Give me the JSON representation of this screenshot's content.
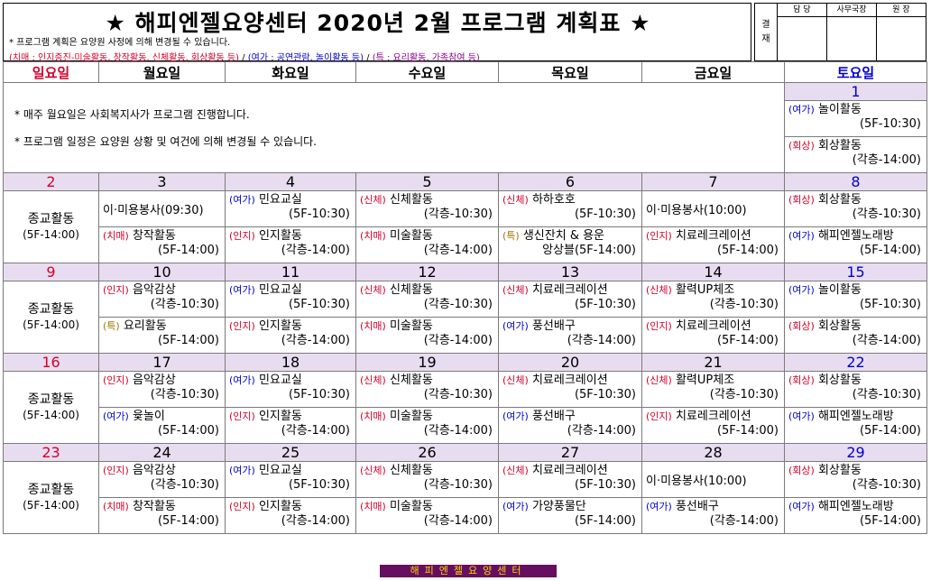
{
  "header": {
    "title": "★ 해피엔젤요양센터 2020년 2월 프로그램 계획표 ★",
    "note": "* 프로그램 계획은 요양원 사정에 의해 변경될 수 있습니다.",
    "legend": {
      "dementia": "(치매 : 인지증진-미술활동, 창작활동, 신체활동, 회상활동 등)",
      "sep1": " / ",
      "leisure": "(여가 : 공연관람, 놀이활동 등)",
      "sep2": " / ",
      "special": "(특 : 요리활동, 가족참여 등)"
    }
  },
  "approval": {
    "label": "결재",
    "columns": [
      "담 당",
      "사무국장",
      "원 장"
    ]
  },
  "weekdays": [
    "일요일",
    "월요일",
    "화요일",
    "수요일",
    "목요일",
    "금요일",
    "토요일"
  ],
  "notices": [
    "* 매주 월요일은 사회복지사가 프로그램 진행합니다.",
    "* 프로그램 일정은 요양원 상황 및 여건에 의해 변경될 수 있습니다."
  ],
  "week0": {
    "sat_date": "1",
    "sat_events": [
      {
        "tag": "(여가)",
        "name": "놀이활동",
        "time": "(5F-10:30)"
      },
      {
        "tag": "(회상)",
        "name": "회상활동",
        "time": "(각층-14:00)"
      }
    ]
  },
  "sunday_program": {
    "name": "종교활동",
    "time": "(5F-14:00)"
  },
  "weeks": [
    {
      "dates": [
        "2",
        "3",
        "4",
        "5",
        "6",
        "7",
        "8"
      ],
      "am": [
        {
          "tag": "",
          "name": "이·미용봉사(09:30)",
          "time": ""
        },
        {
          "tag": "(여가)",
          "name": "민요교실",
          "time": "(5F-10:30)"
        },
        {
          "tag": "(신체)",
          "name": "신체활동",
          "time": "(각층-10:30)"
        },
        {
          "tag": "(신체)",
          "name": "하하호호",
          "time": "(5F-10:30)"
        },
        {
          "tag": "",
          "name": "이·미용봉사(10:00)",
          "time": ""
        },
        {
          "tag": "(회상)",
          "name": "회상활동",
          "time": "(각층-10:30)"
        }
      ],
      "pm": [
        {
          "tag": "(치매)",
          "name": "창작활동",
          "time": "(5F-14:00)"
        },
        {
          "tag": "(인지)",
          "name": "인지활동",
          "time": "(각층-14:00)"
        },
        {
          "tag": "(치매)",
          "name": "미술활동",
          "time": "(각층-14:00)"
        },
        {
          "tag": "(특)",
          "name": "생신잔치 & 용운",
          "time": "앙상블(5F-14:00)"
        },
        {
          "tag": "(인지)",
          "name": "치료레크레이션",
          "time": "(5F-14:00)"
        },
        {
          "tag": "(여가)",
          "name": "해피엔젤노래방",
          "time": "(5F-14:00)"
        }
      ]
    },
    {
      "dates": [
        "9",
        "10",
        "11",
        "12",
        "13",
        "14",
        "15"
      ],
      "am": [
        {
          "tag": "(인지)",
          "name": "음악감상",
          "time": "(각층-10:30)"
        },
        {
          "tag": "(여가)",
          "name": "민요교실",
          "time": "(5F-10:30)"
        },
        {
          "tag": "(신체)",
          "name": "신체활동",
          "time": "(각층-10:30)"
        },
        {
          "tag": "(신체)",
          "name": "치료레크레이션",
          "time": "(5F-10:30)"
        },
        {
          "tag": "(신체)",
          "name": "활력UP체조",
          "time": "(각층-10:30)"
        },
        {
          "tag": "(여가)",
          "name": "놀이활동",
          "time": "(5F-10:30)"
        }
      ],
      "pm": [
        {
          "tag": "(특)",
          "name": "요리활동",
          "time": "(5F-14:00)"
        },
        {
          "tag": "(인지)",
          "name": "인지활동",
          "time": "(각층-14:00)"
        },
        {
          "tag": "(치매)",
          "name": "미술활동",
          "time": "(각층-14:00)"
        },
        {
          "tag": "(여가)",
          "name": "풍선배구",
          "time": "(각층-14:00)"
        },
        {
          "tag": "(인지)",
          "name": "치료레크레이션",
          "time": "(5F-14:00)"
        },
        {
          "tag": "(회상)",
          "name": "회상활동",
          "time": "(각층-14:00)"
        }
      ]
    },
    {
      "dates": [
        "16",
        "17",
        "18",
        "19",
        "20",
        "21",
        "22"
      ],
      "am": [
        {
          "tag": "(인지)",
          "name": "음악감상",
          "time": "(각층-10:30)"
        },
        {
          "tag": "(여가)",
          "name": "민요교실",
          "time": "(5F-10:30)"
        },
        {
          "tag": "(신체)",
          "name": "신체활동",
          "time": "(각층-10:30)"
        },
        {
          "tag": "(신체)",
          "name": "치료레크레이션",
          "time": "(5F-10:30)"
        },
        {
          "tag": "(신체)",
          "name": "활력UP체조",
          "time": "(각층-10:30)"
        },
        {
          "tag": "(회상)",
          "name": "회상활동",
          "time": "(각층-10:30)"
        }
      ],
      "pm": [
        {
          "tag": "(여가)",
          "name": "윷놀이",
          "time": "(5F-14:00)"
        },
        {
          "tag": "(인지)",
          "name": "인지활동",
          "time": "(각층-14:00)"
        },
        {
          "tag": "(치매)",
          "name": "미술활동",
          "time": "(각층-14:00)"
        },
        {
          "tag": "(여가)",
          "name": "풍선배구",
          "time": "(각층-14:00)"
        },
        {
          "tag": "(인지)",
          "name": "치료레크레이션",
          "time": "(5F-14:00)"
        },
        {
          "tag": "(여가)",
          "name": "해피엔젤노래방",
          "time": "(5F-14:00)"
        }
      ]
    },
    {
      "dates": [
        "23",
        "24",
        "25",
        "26",
        "27",
        "28",
        "29"
      ],
      "am": [
        {
          "tag": "(인지)",
          "name": "음악감상",
          "time": "(각층-10:30)"
        },
        {
          "tag": "(여가)",
          "name": "민요교실",
          "time": "(5F-10:30)"
        },
        {
          "tag": "(신체)",
          "name": "신체활동",
          "time": "(각층-10:30)"
        },
        {
          "tag": "(신체)",
          "name": "치료레크레이션",
          "time": "(5F-10:30)"
        },
        {
          "tag": "",
          "name": "이·미용봉사(10:00)",
          "time": ""
        },
        {
          "tag": "(회상)",
          "name": "회상활동",
          "time": "(각층-10:30)"
        }
      ],
      "pm": [
        {
          "tag": "(치매)",
          "name": "창작활동",
          "time": "(5F-14:00)"
        },
        {
          "tag": "(인지)",
          "name": "인지활동",
          "time": "(각층-14:00)"
        },
        {
          "tag": "(치매)",
          "name": "미술활동",
          "time": "(각층-14:00)"
        },
        {
          "tag": "(여가)",
          "name": "가양풍물단",
          "time": "(5F-14:00)"
        },
        {
          "tag": "(여가)",
          "name": "풍선배구",
          "time": "(각층-14:00)"
        },
        {
          "tag": "(여가)",
          "name": "해피엔젤노래방",
          "time": "(5F-14:00)"
        }
      ]
    }
  ],
  "footer": "해피엔젤요양센터",
  "colors": {
    "sunday": "#d4002a",
    "saturday": "#0000d0",
    "date_row_bg": "#e8ddf0",
    "footer_bg": "#660e60",
    "footer_text": "#ffd400"
  }
}
